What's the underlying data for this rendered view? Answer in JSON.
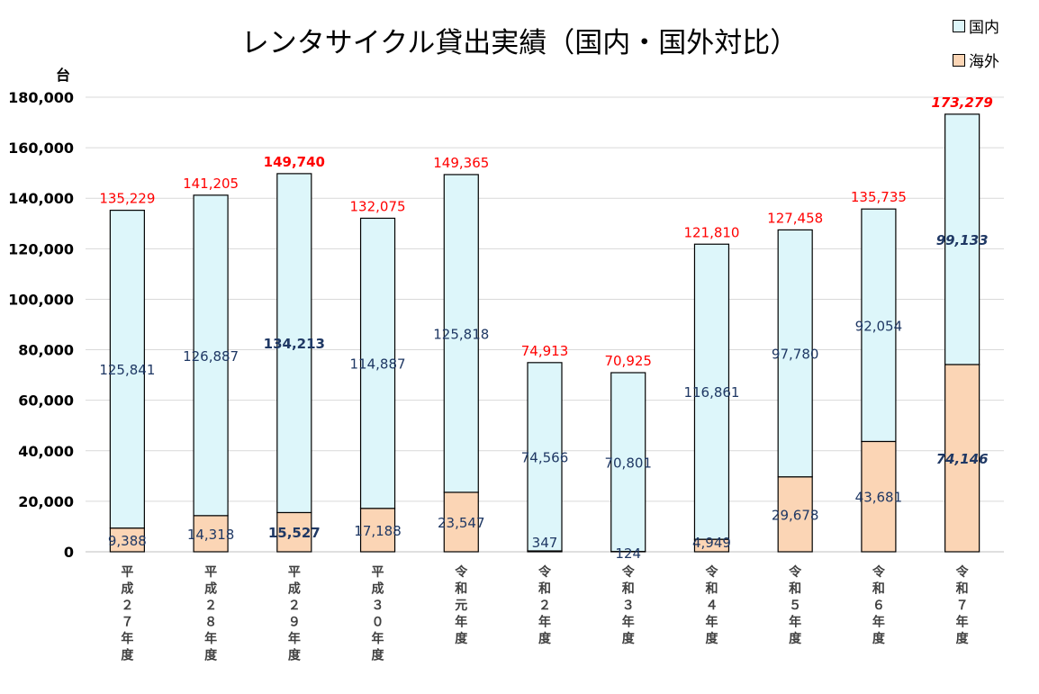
{
  "chart_data": {
    "type": "bar",
    "stacked": true,
    "title": "レンタサイクル貸出実績（国内・国外対比）",
    "ylabel": "台",
    "ylim": [
      0,
      180000
    ],
    "yticks": [
      0,
      20000,
      40000,
      60000,
      80000,
      100000,
      120000,
      140000,
      160000,
      180000
    ],
    "ytick_labels": [
      "0",
      "20,000",
      "40,000",
      "60,000",
      "80,000",
      "100,000",
      "120,000",
      "140,000",
      "160,000",
      "180,000"
    ],
    "grid": true,
    "legend_position": "top-right",
    "categories": [
      "平成２７年度",
      "平成２８年度",
      "平成２９年度",
      "平成３０年度",
      "令和元年度",
      "令和２年度",
      "令和３年度",
      "令和４年度",
      "令和５年度",
      "令和６年度",
      "令和７年度"
    ],
    "series": [
      {
        "name": "海外",
        "color": "#FBD5B5",
        "values": [
          9388,
          14318,
          15527,
          17188,
          23547,
          347,
          124,
          4949,
          29678,
          43681,
          74146
        ],
        "labels": [
          "9,388",
          "14,318",
          "15,527",
          "17,188",
          "23,547",
          "347",
          "124",
          "4,949",
          "29,678",
          "43,681",
          "74,146"
        ]
      },
      {
        "name": "国内",
        "color": "#DDF6FA",
        "values": [
          125841,
          126887,
          134213,
          114887,
          125818,
          74566,
          70801,
          116861,
          97780,
          92054,
          99133
        ],
        "labels": [
          "125,841",
          "126,887",
          "134,213",
          "114,887",
          "125,818",
          "74,566",
          "70,801",
          "116,861",
          "97,780",
          "92,054",
          "99,133"
        ]
      }
    ],
    "totals": [
      135229,
      141205,
      149740,
      132075,
      149365,
      74913,
      70925,
      121810,
      127458,
      135735,
      173279
    ],
    "total_labels": [
      "135,229",
      "141,205",
      "149,740",
      "132,075",
      "149,365",
      "74,913",
      "70,925",
      "121,810",
      "127,458",
      "135,735",
      "173,279"
    ],
    "emphasis": [
      "",
      "",
      "bold",
      "",
      "",
      "",
      "",
      "",
      "",
      "",
      "bold-italic"
    ],
    "colors": {
      "total_label": "#FF0000",
      "segment_label": "#1F3864",
      "grid": "#D9D9D9"
    }
  }
}
